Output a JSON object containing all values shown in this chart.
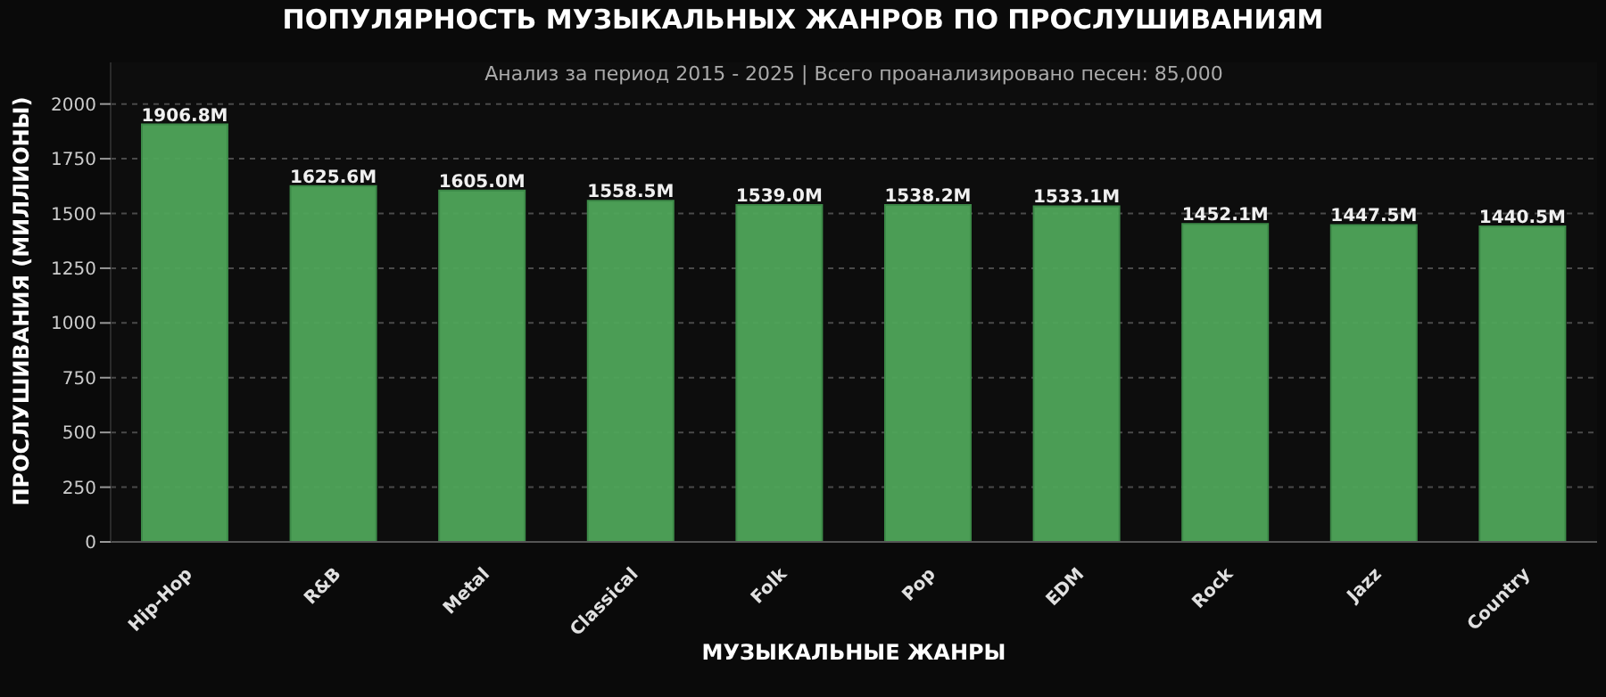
{
  "chart_data": {
    "type": "bar",
    "title": "ПОПУЛЯРНОСТЬ МУЗЫКАЛЬНЫХ ЖАНРОВ ПО ПРОСЛУШИВАНИЯМ",
    "subtitle": "Анализ за период 2015 - 2025 | Всего проанализировано песен: 85,000",
    "xlabel": "МУЗЫКАЛЬНЫЕ ЖАНРЫ",
    "ylabel": "ПРОСЛУШИВАНИЯ (МИЛЛИОНЫ)",
    "categories": [
      "Hip-Hop",
      "R&B",
      "Metal",
      "Classical",
      "Folk",
      "Pop",
      "EDM",
      "Rock",
      "Jazz",
      "Country"
    ],
    "values": [
      1906.8,
      1625.6,
      1605.0,
      1558.5,
      1539.0,
      1538.2,
      1533.1,
      1452.1,
      1447.5,
      1440.5
    ],
    "value_labels": [
      "1906.8M",
      "1625.6M",
      "1605.0M",
      "1558.5M",
      "1539.0M",
      "1538.2M",
      "1533.1M",
      "1452.1M",
      "1447.5M",
      "1440.5M"
    ],
    "color": "#4fa55a",
    "ylim": [
      0,
      2190
    ],
    "yticks": [
      0,
      250,
      500,
      750,
      1000,
      1250,
      1500,
      1750,
      2000
    ],
    "grid": "y"
  }
}
